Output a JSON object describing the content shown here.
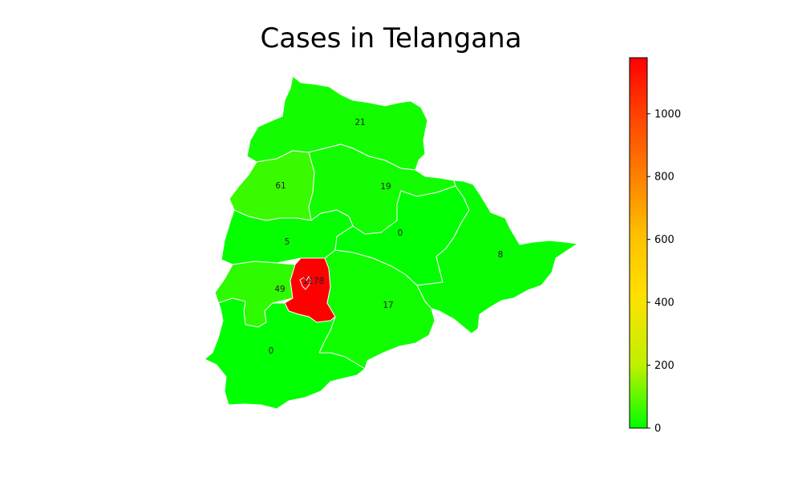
{
  "title": "Cases in Telangana",
  "map": {
    "regions": [
      {
        "id": "north",
        "value": 21,
        "label": "21"
      },
      {
        "id": "northwest",
        "value": 61,
        "label": "61"
      },
      {
        "id": "north-central",
        "value": 19,
        "label": "19"
      },
      {
        "id": "west-central",
        "value": 5,
        "label": "5"
      },
      {
        "id": "east-central",
        "value": 0,
        "label": "0"
      },
      {
        "id": "east",
        "value": 8,
        "label": "8"
      },
      {
        "id": "southwest",
        "value": 49,
        "label": "49"
      },
      {
        "id": "hyderabad-surround",
        "value": 1178,
        "label": "1178"
      },
      {
        "id": "south-central",
        "value": 17,
        "label": "17"
      },
      {
        "id": "south",
        "value": 0,
        "label": "0"
      }
    ]
  },
  "colorbar": {
    "min": 0,
    "max": 1178,
    "ticks": [
      {
        "value": 0,
        "label": "0"
      },
      {
        "value": 200,
        "label": "200"
      },
      {
        "value": 400,
        "label": "400"
      },
      {
        "value": 600,
        "label": "600"
      },
      {
        "value": 800,
        "label": "800"
      },
      {
        "value": 1000,
        "label": "1000"
      }
    ],
    "colors": [
      "#00ff00",
      "#ffe000",
      "#ffa000",
      "#ff0000"
    ]
  }
}
